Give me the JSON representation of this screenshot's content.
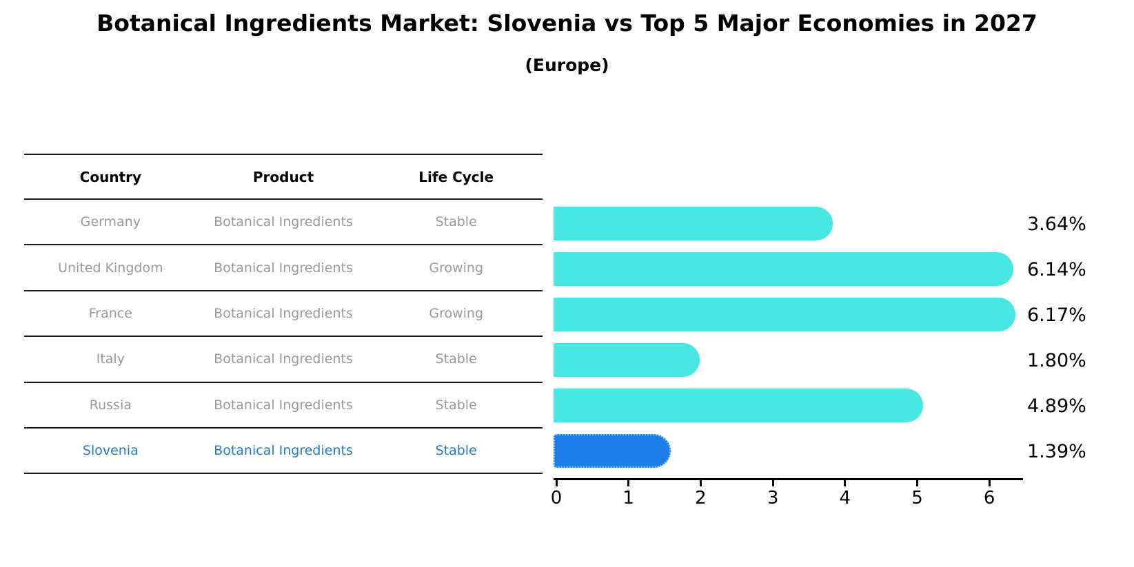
{
  "title": "Botanical Ingredients Market: Slovenia vs Top 5 Major Economies in 2027",
  "subtitle": "(Europe)",
  "table": {
    "headers": [
      "Country",
      "Product",
      "Life Cycle"
    ],
    "rows": [
      {
        "country": "Germany",
        "product": "Botanical Ingredients",
        "life_cycle": "Stable",
        "highlight": false
      },
      {
        "country": "United Kingdom",
        "product": "Botanical Ingredients",
        "life_cycle": "Growing",
        "highlight": false
      },
      {
        "country": "France",
        "product": "Botanical Ingredients",
        "life_cycle": "Growing",
        "highlight": false
      },
      {
        "country": "Italy",
        "product": "Botanical Ingredients",
        "life_cycle": "Stable",
        "highlight": false
      },
      {
        "country": "Russia",
        "product": "Botanical Ingredients",
        "life_cycle": "Stable",
        "highlight": true
      },
      {
        "country": "Slovenia",
        "product": "Botanical Ingredients",
        "life_cycle": "Stable",
        "highlight": true
      }
    ]
  },
  "chart_data": {
    "type": "bar",
    "orientation": "horizontal",
    "categories": [
      "Germany",
      "United Kingdom",
      "France",
      "Italy",
      "Russia",
      "Slovenia"
    ],
    "values": [
      3.64,
      6.14,
      6.17,
      1.8,
      4.89,
      1.39
    ],
    "value_labels": [
      "3.64%",
      "6.14%",
      "6.17%",
      "1.80%",
      "4.89%",
      "1.39%"
    ],
    "highlight_index": 5,
    "x_ticks": [
      "0",
      "1",
      "2",
      "3",
      "4",
      "5",
      "6"
    ],
    "xlim": [
      0,
      6.5
    ],
    "grid": false,
    "legend": false
  },
  "colors": {
    "bar": "#48E7E4",
    "highlight_bar": "#1C7CE9",
    "highlight_bar_border": "#8ECDF2",
    "highlight_text": "#2479C8",
    "table_text": "#999999",
    "axis": "#000000"
  }
}
